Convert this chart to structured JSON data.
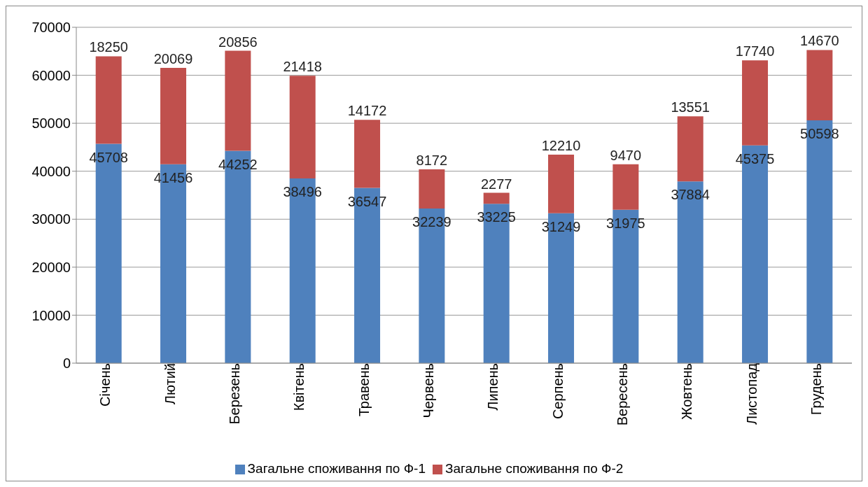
{
  "chart_data": {
    "type": "bar",
    "stacked": true,
    "categories": [
      "Січень",
      "Лютий",
      "Березень",
      "Квітень",
      "Травень",
      "Червень",
      "Липень",
      "Серпень",
      "Вересень",
      "Жовтень",
      "Листопад",
      "Грудень"
    ],
    "series": [
      {
        "name": "Загальне споживання по Ф-1",
        "color": "#4f81bd",
        "values": [
          45708,
          41456,
          44252,
          38496,
          36547,
          32239,
          33225,
          31249,
          31975,
          37884,
          45375,
          50598
        ]
      },
      {
        "name": "Загальне споживання по Ф-2",
        "color": "#c0504d",
        "values": [
          18250,
          20069,
          20856,
          21418,
          14172,
          8172,
          2277,
          12210,
          9470,
          13551,
          17740,
          14670
        ]
      }
    ],
    "ylim": [
      0,
      70000
    ],
    "yticks": [
      0,
      10000,
      20000,
      30000,
      40000,
      50000,
      60000,
      70000
    ],
    "grid": "y",
    "legend": "bottom",
    "data_labels": true
  }
}
